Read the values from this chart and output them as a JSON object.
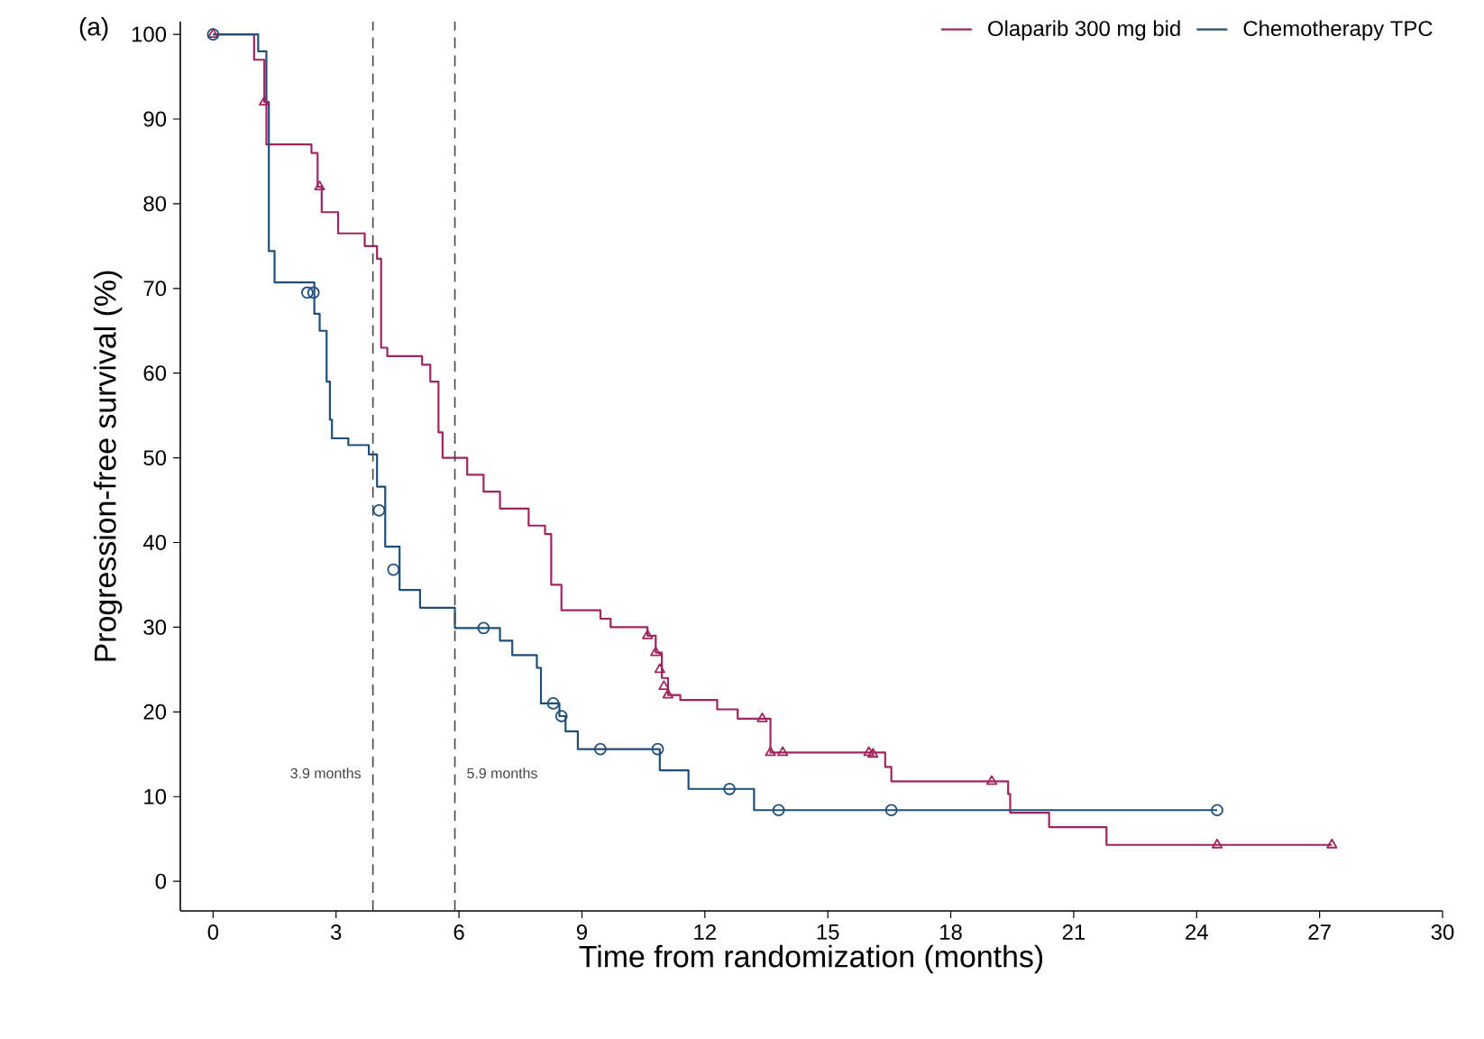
{
  "chart_data": {
    "type": "step",
    "title": "(a)",
    "xlabel": "Time from randomization (months)",
    "ylabel": "Progression-free survival (%)",
    "xlim": [
      -0.8,
      30
    ],
    "ylim": [
      -3.5,
      101.5
    ],
    "xticks": [
      0,
      3,
      6,
      9,
      12,
      15,
      18,
      21,
      24,
      27,
      30
    ],
    "yticks": [
      0,
      10,
      20,
      30,
      40,
      50,
      60,
      70,
      80,
      90,
      100
    ],
    "legend": "top right",
    "series": [
      {
        "name": "Olaparib 300 mg bid",
        "color": "#a0245e",
        "x": [
          0,
          1.0,
          1.25,
          1.3,
          2.4,
          2.55,
          2.65,
          3.05,
          3.7,
          4.0,
          4.1,
          4.25,
          5.1,
          5.3,
          5.5,
          5.6,
          6.2,
          6.6,
          7.0,
          7.7,
          8.1,
          8.25,
          8.5,
          9.45,
          9.7,
          10.6,
          10.8,
          10.95,
          11.1,
          11.4,
          12.3,
          12.8,
          13.6,
          16.4,
          16.55,
          19.4,
          19.45,
          20.4,
          21.8,
          27.3
        ],
        "values": [
          100,
          97,
          92,
          87,
          86,
          82,
          79,
          76.5,
          75,
          73.5,
          63,
          62,
          61,
          59,
          53,
          50,
          48,
          46,
          44,
          42,
          41,
          35,
          32,
          31,
          30,
          29,
          27,
          24,
          22,
          21.4,
          20.3,
          19.2,
          15.2,
          13.5,
          11.8,
          10.3,
          8.1,
          6.4,
          4.3,
          4.3
        ]
      },
      {
        "name": "Chemotherapy TPC",
        "color": "#1f4e79",
        "x": [
          0,
          1.1,
          1.3,
          1.36,
          1.5,
          2.47,
          2.6,
          2.77,
          2.85,
          2.9,
          3.3,
          3.8,
          4.0,
          4.2,
          4.55,
          5.05,
          5.9,
          7.0,
          7.3,
          7.9,
          8.0,
          8.45,
          8.6,
          8.9,
          10.9,
          11.6,
          13.2,
          24.5
        ],
        "values": [
          100,
          98,
          92,
          74.4,
          70.7,
          67,
          65,
          59,
          54.5,
          52.3,
          51.5,
          50.4,
          46.6,
          39.5,
          34.4,
          32.3,
          29.9,
          28.4,
          26.7,
          25.2,
          21,
          19.5,
          17.7,
          15.6,
          13.1,
          10.9,
          8.4,
          8.4
        ]
      },
      {
        "color": "#a0245e",
        "type": "scatter",
        "marker": "triangle",
        "x": [
          0,
          1.25,
          2.6,
          10.6,
          10.8,
          10.9,
          11.0,
          11.1,
          13.4,
          13.6,
          13.9,
          16.0,
          16.1,
          19.0,
          24.5,
          27.3
        ],
        "values": [
          100,
          92,
          82,
          29,
          27,
          25,
          23,
          22,
          19.2,
          15.2,
          15.2,
          15.2,
          15,
          11.8,
          4.3,
          4.3
        ]
      },
      {
        "color": "#1f4e79",
        "type": "scatter",
        "marker": "circle",
        "x": [
          0,
          2.3,
          2.45,
          4.05,
          4.4,
          6.6,
          8.3,
          8.5,
          9.45,
          10.85,
          12.6,
          13.8,
          16.55,
          24.5
        ],
        "values": [
          100,
          69.5,
          69.5,
          43.8,
          36.8,
          29.9,
          21,
          19.5,
          15.6,
          15.6,
          10.9,
          8.4,
          8.4,
          8.4
        ]
      }
    ],
    "ref_lines": [
      {
        "axis": "x",
        "value": 3.9,
        "label": "3.9 months",
        "color": "#444444",
        "line_style": "dashed"
      },
      {
        "axis": "x",
        "value": 5.9,
        "label": "5.9 months",
        "color": "#444444",
        "line_style": "dashed"
      }
    ]
  }
}
